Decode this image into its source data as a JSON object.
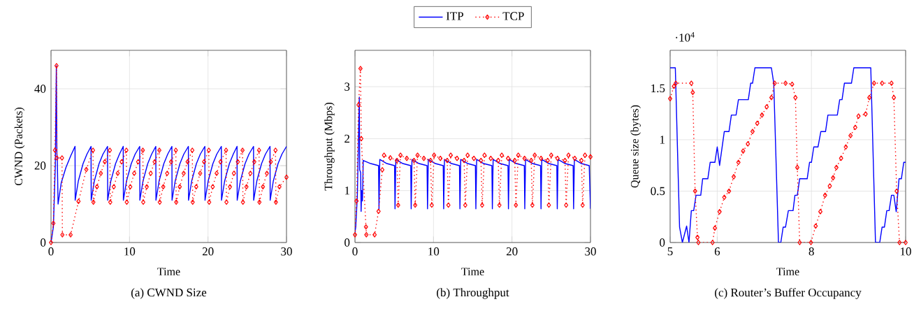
{
  "chart_data": [
    {
      "type": "line",
      "title": "(a) CWND Size",
      "xlabel": "Time",
      "ylabel": "CWND (Packets)",
      "xlim": [
        0,
        30
      ],
      "ylim": [
        0,
        50
      ],
      "xticks": [
        0,
        10,
        20,
        30
      ],
      "yticks": [
        0,
        20,
        40
      ],
      "grid": true,
      "series": [
        {
          "color": "#0000ff",
          "line_style": "solid",
          "marker": "none",
          "x": [
            0,
            0.3,
            0.55,
            0.68,
            0.75,
            0.8,
            0.9,
            1.3,
            1.9,
            2.5,
            3.06,
            3.08,
            3.48,
            4.08,
            4.58,
            5.1,
            5.12,
            5.52,
            6.12,
            6.62,
            7.2,
            7.22,
            7.62,
            8.22,
            8.72,
            9.2,
            9.22,
            9.62,
            10.22,
            10.72,
            11.3,
            11.32,
            11.72,
            12.32,
            12.82,
            13.35,
            13.37,
            13.77,
            14.37,
            14.87,
            15.4,
            15.42,
            15.82,
            16.42,
            16.92,
            17.5,
            17.52,
            17.92,
            18.52,
            19.02,
            19.6,
            19.62,
            20.02,
            20.62,
            21.12,
            21.7,
            21.72,
            22.12,
            22.72,
            23.22,
            23.7,
            23.72,
            24.12,
            24.72,
            25.22,
            25.8,
            25.82,
            26.22,
            26.82,
            27.32,
            27.9,
            27.92,
            28.32,
            28.92,
            29.42,
            30
          ],
          "values": [
            0,
            4,
            20,
            46,
            23,
            22,
            10,
            15.5,
            19.5,
            22.5,
            25,
            11,
            16,
            20.5,
            23,
            25,
            11,
            16,
            20.5,
            23,
            25,
            11,
            16,
            20.5,
            23,
            25,
            11,
            16,
            20.5,
            23,
            25,
            11,
            16,
            20.5,
            23,
            25,
            11,
            16,
            20.5,
            23,
            25,
            11,
            16,
            20.5,
            23,
            25,
            11,
            16,
            20.5,
            23,
            25,
            11,
            16,
            20.5,
            23,
            25,
            11,
            16,
            20.5,
            23,
            25,
            11,
            16,
            20.5,
            23,
            25,
            11,
            16,
            20.5,
            23,
            25,
            11,
            16,
            20.5,
            23,
            25
          ]
        },
        {
          "color": "#ff0000",
          "line_style": "dotted",
          "marker": "diamond",
          "x": [
            0,
            0.3,
            0.5,
            0.7,
            0.75,
            1.4,
            1.45,
            2.5,
            3.5,
            4.5,
            5.35,
            5.4,
            5.85,
            6.35,
            6.85,
            7.5,
            7.55,
            8.0,
            8.5,
            9.0,
            9.6,
            9.65,
            10.1,
            10.6,
            11.1,
            11.7,
            11.75,
            12.2,
            12.7,
            13.2,
            13.8,
            13.85,
            14.3,
            14.8,
            15.3,
            15.9,
            15.95,
            16.4,
            16.9,
            17.4,
            18,
            18.05,
            18.5,
            19.0,
            19.5,
            20.1,
            20.15,
            20.6,
            21.1,
            21.6,
            22.3,
            22.35,
            22.8,
            23.3,
            23.8,
            24.4,
            24.45,
            24.9,
            25.4,
            25.9,
            26.5,
            26.55,
            27.0,
            27.5,
            28.0,
            28.6,
            28.65,
            29.1,
            30
          ],
          "values": [
            0,
            5,
            24,
            46,
            22,
            22,
            2,
            2,
            10.7,
            19,
            24,
            10.5,
            14.5,
            18,
            21,
            24,
            10.5,
            14.5,
            18,
            21,
            24,
            10.5,
            14.5,
            18,
            21,
            24,
            10.5,
            14.5,
            18,
            21,
            24,
            10.5,
            14.5,
            18,
            21,
            24,
            10.5,
            14.5,
            18,
            21,
            24,
            10.5,
            14.5,
            18,
            21,
            24,
            10.5,
            14.5,
            18,
            21,
            24,
            10.5,
            14.5,
            18,
            21,
            24,
            10.5,
            14.5,
            18,
            21,
            24,
            10.5,
            14.5,
            18,
            21,
            24,
            10.5,
            14.5,
            17
          ]
        }
      ]
    },
    {
      "type": "line",
      "title": "(b) Throughput",
      "xlabel": "Time",
      "ylabel": "Throughput (Mbps)",
      "xlim": [
        0,
        30
      ],
      "ylim": [
        0,
        3.7
      ],
      "xticks": [
        0,
        10,
        20,
        30
      ],
      "yticks": [
        0,
        1,
        2,
        3
      ],
      "grid": true,
      "legend": "top",
      "series": [
        {
          "name": "ITP",
          "color": "#0000ff",
          "line_style": "solid",
          "marker": "none",
          "x": [
            0,
            0.1,
            0.3,
            0.45,
            0.55,
            0.6,
            0.72,
            0.78,
            0.85,
            0.95,
            1.05,
            2.0,
            3.0,
            3.06,
            3.16,
            4.06,
            5.04,
            5.1,
            5.2,
            6.1,
            7.1,
            7.16,
            7.26,
            8.16,
            9.18,
            9.24,
            9.34,
            10.24,
            11.24,
            11.3,
            11.4,
            12.3,
            13.31,
            13.37,
            13.47,
            14.37,
            15.34,
            15.4,
            15.5,
            16.4,
            17.44,
            17.5,
            17.6,
            18.5,
            19.49,
            19.55,
            19.65,
            20.55,
            21.57,
            21.63,
            21.73,
            22.63,
            23.64,
            23.7,
            23.8,
            24.7,
            25.71,
            25.77,
            25.87,
            26.77,
            27.79,
            27.85,
            27.95,
            28.85,
            29.84,
            30
          ],
          "values": [
            0.2,
            0.3,
            0.9,
            2.0,
            2.8,
            1.4,
            1.35,
            0.6,
            1.0,
            0.8,
            1.58,
            1.52,
            1.48,
            0.65,
            1.6,
            1.52,
            1.48,
            0.65,
            1.6,
            1.52,
            1.48,
            0.65,
            1.6,
            1.52,
            1.48,
            0.65,
            1.6,
            1.52,
            1.48,
            0.65,
            1.6,
            1.52,
            1.48,
            0.65,
            1.6,
            1.52,
            1.48,
            0.65,
            1.6,
            1.52,
            1.48,
            0.65,
            1.6,
            1.52,
            1.48,
            0.65,
            1.6,
            1.52,
            1.48,
            0.65,
            1.6,
            1.52,
            1.48,
            0.65,
            1.6,
            1.52,
            1.48,
            0.65,
            1.6,
            1.52,
            1.48,
            0.65,
            1.6,
            1.52,
            1.48,
            0.65
          ]
        },
        {
          "name": "TCP",
          "color": "#ff0000",
          "line_style": "dotted",
          "marker": "diamond",
          "x": [
            0,
            0.2,
            0.45,
            0.7,
            0.8,
            1.4,
            1.45,
            2.5,
            3.0,
            3.48,
            3.7,
            4.5,
            5.35,
            5.5,
            5.8,
            6.6,
            7.52,
            7.67,
            7.97,
            8.77,
            9.63,
            9.78,
            10.08,
            10.88,
            11.75,
            11.9,
            12.2,
            13.0,
            13.9,
            14.05,
            14.35,
            15.15,
            16.05,
            16.2,
            16.5,
            17.3,
            18.25,
            18.4,
            18.7,
            19.5,
            20.35,
            20.5,
            20.8,
            21.6,
            22.45,
            22.6,
            22.9,
            23.7,
            24.55,
            24.7,
            25.0,
            25.8,
            26.75,
            26.9,
            27.2,
            28.0,
            28.85,
            29.0,
            29.3,
            30
          ],
          "values": [
            0.15,
            0.8,
            2.65,
            3.35,
            2.0,
            0.3,
            0.15,
            0.15,
            0.6,
            1.4,
            1.68,
            1.63,
            1.58,
            0.72,
            1.68,
            1.62,
            1.58,
            0.72,
            1.68,
            1.62,
            1.58,
            0.72,
            1.68,
            1.62,
            1.58,
            0.72,
            1.68,
            1.62,
            1.58,
            0.72,
            1.68,
            1.62,
            1.58,
            0.72,
            1.68,
            1.62,
            1.58,
            0.72,
            1.68,
            1.62,
            1.58,
            0.72,
            1.68,
            1.62,
            1.58,
            0.72,
            1.68,
            1.62,
            1.58,
            0.72,
            1.68,
            1.62,
            1.58,
            0.72,
            1.68,
            1.62,
            1.58,
            0.72,
            1.68,
            1.65
          ]
        }
      ]
    },
    {
      "type": "line",
      "title": "(c) Router’s Buffer Occupancy",
      "xlabel": "Time",
      "ylabel": "Queue size (bytes)",
      "annotations": [
        "·10$^{4}$"
      ],
      "xlim": [
        5,
        10
      ],
      "ylim": [
        0,
        1.87
      ],
      "xticks": [
        5,
        6,
        8,
        10
      ],
      "yticks": [
        0,
        0.5,
        1,
        1.5
      ],
      "grid": true,
      "series": [
        {
          "color": "#0000ff",
          "line_style": "solid",
          "marker": "none",
          "x": [
            5,
            5.11,
            5.2,
            5.26,
            5.35,
            5.4,
            5.45,
            5.5,
            5.55,
            5.65,
            5.69,
            5.8,
            5.85,
            5.95,
            6,
            6.05,
            6.15,
            6.25,
            6.3,
            6.4,
            6.45,
            6.66,
            6.71,
            6.75,
            6.8,
            7.15,
            7.2,
            7.3,
            7.35,
            7.4,
            7.45,
            7.51,
            7.61,
            7.65,
            7.7,
            7.75,
            7.91,
            7.96,
            8,
            8.05,
            8.14,
            8.2,
            8.3,
            8.35,
            8.55,
            8.6,
            8.65,
            8.7,
            8.85,
            8.9,
            9.26,
            9.36,
            9.45,
            9.5,
            9.55,
            9.6,
            9.65,
            9.7,
            9.75,
            9.8,
            9.86,
            9.91,
            9.96,
            10
          ],
          "values": [
            1.7,
            1.7,
            0.15,
            0,
            0.16,
            0,
            0.31,
            0.31,
            0.46,
            0.46,
            0.62,
            0.62,
            0.78,
            0.78,
            0.93,
            0.75,
            1.08,
            1.08,
            1.24,
            1.24,
            1.39,
            1.39,
            1.55,
            1.55,
            1.7,
            1.7,
            1.55,
            0,
            0,
            0.15,
            0.15,
            0.31,
            0.31,
            0.46,
            0.46,
            0.62,
            0.62,
            0.78,
            0.78,
            0.93,
            0.93,
            1.08,
            1.08,
            1.24,
            1.24,
            1.39,
            1.39,
            1.55,
            1.55,
            1.7,
            1.7,
            0,
            0,
            0.15,
            0.15,
            0.31,
            0.31,
            0.46,
            0.46,
            0.3,
            0.62,
            0.62,
            0.78,
            0.78
          ]
        },
        {
          "color": "#ff0000",
          "line_style": "dotted",
          "marker": "diamond",
          "x": [
            5,
            5.08,
            5.12,
            5.45,
            5.48,
            5.53,
            5.58,
            5.6,
            5.9,
            5.95,
            6.05,
            6.15,
            6.25,
            6.35,
            6.45,
            6.55,
            6.65,
            6.75,
            6.85,
            6.95,
            7.05,
            7.15,
            7.22,
            7.45,
            7.59,
            7.66,
            7.7,
            7.75,
            7.99,
            8.09,
            8.19,
            8.29,
            8.39,
            8.46,
            8.53,
            8.63,
            8.73,
            8.83,
            8.93,
            9.0,
            9.15,
            9.23,
            9.33,
            9.5,
            9.7,
            9.75,
            9.81,
            9.87,
            10
          ],
          "values": [
            1.4,
            1.52,
            1.55,
            1.55,
            1.46,
            0.5,
            0.05,
            0,
            0,
            0.14,
            0.3,
            0.44,
            0.5,
            0.64,
            0.78,
            0.89,
            0.96,
            1.08,
            1.16,
            1.24,
            1.32,
            1.41,
            1.55,
            1.55,
            1.54,
            1.41,
            0.73,
            0,
            0,
            0.16,
            0.3,
            0.46,
            0.55,
            0.63,
            0.73,
            0.82,
            0.93,
            1.04,
            1.12,
            1.23,
            1.25,
            1.41,
            1.55,
            1.55,
            1.55,
            1.41,
            0.5,
            0,
            0
          ]
        }
      ]
    }
  ]
}
